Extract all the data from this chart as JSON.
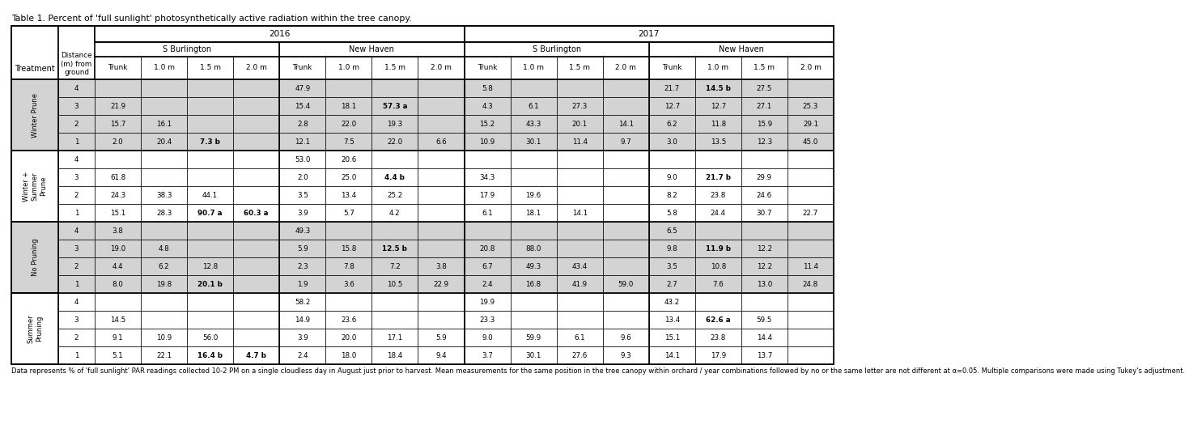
{
  "title": "Table 1. Percent of 'full sunlight' photosynthetically active radiation within the tree canopy.",
  "footnote": "Data represents % of 'full sunlight' PAR readings collected 10-2 PM on a single cloudless day in August just prior to harvest. Mean measurements for the same position in the tree canopy within orchard / year combinations followed by no or the same letter are not different at α=0.05. Multiple comparisons were made using Tukey's adjustment.",
  "col_headers": [
    "Trunk",
    "1.0 m",
    "1.5 m",
    "2.0 m",
    "Trunk",
    "1.0 m",
    "1.5 m",
    "2.0 m",
    "Trunk",
    "1.0 m",
    "1.5 m",
    "2.0 m",
    "Trunk",
    "1.0 m",
    "1.5 m",
    "2.0 m"
  ],
  "treatments": [
    {
      "name": "Winter Prune",
      "rows": [
        {
          "dist": "4",
          "vals": [
            "",
            "",
            "",
            "",
            "47.9",
            "",
            "",
            "",
            "5.8",
            "",
            "",
            "",
            "21.7",
            "14.5 b",
            "27.5",
            ""
          ]
        },
        {
          "dist": "3",
          "vals": [
            "21.9",
            "",
            "",
            "",
            "15.4",
            "18.1",
            "57.3 a",
            "",
            "4.3",
            "6.1",
            "27.3",
            "",
            "12.7",
            "12.7",
            "27.1",
            "25.3"
          ]
        },
        {
          "dist": "2",
          "vals": [
            "15.7",
            "16.1",
            "",
            "",
            "2.8",
            "22.0",
            "19.3",
            "",
            "15.2",
            "43.3",
            "20.1",
            "14.1",
            "6.2",
            "11.8",
            "15.9",
            "29.1"
          ]
        },
        {
          "dist": "1",
          "vals": [
            "2.0",
            "20.4",
            "7.3 b",
            "",
            "12.1",
            "7.5",
            "22.0",
            "6.6",
            "10.9",
            "30.1",
            "11.4",
            "9.7",
            "3.0",
            "13.5",
            "12.3",
            "45.0"
          ]
        }
      ],
      "shade": true
    },
    {
      "name": "Winter +\nSummer\nPrune",
      "rows": [
        {
          "dist": "4",
          "vals": [
            "",
            "",
            "",
            "",
            "53.0",
            "20.6",
            "",
            "",
            "",
            "",
            "",
            "",
            "",
            "",
            "",
            ""
          ]
        },
        {
          "dist": "3",
          "vals": [
            "61.8",
            "",
            "",
            "",
            "2.0",
            "25.0",
            "4.4 b",
            "",
            "34.3",
            "",
            "",
            "",
            "9.0",
            "21.7 b",
            "29.9",
            ""
          ]
        },
        {
          "dist": "2",
          "vals": [
            "24.3",
            "38.3",
            "44.1",
            "",
            "3.5",
            "13.4",
            "25.2",
            "",
            "17.9",
            "19.6",
            "",
            "",
            "8.2",
            "23.8",
            "24.6",
            ""
          ]
        },
        {
          "dist": "1",
          "vals": [
            "15.1",
            "28.3",
            "90.7 a",
            "60.3 a",
            "3.9",
            "5.7",
            "4.2",
            "",
            "6.1",
            "18.1",
            "14.1",
            "",
            "5.8",
            "24.4",
            "30.7",
            "22.7"
          ]
        }
      ],
      "shade": false
    },
    {
      "name": "No Pruning",
      "rows": [
        {
          "dist": "4",
          "vals": [
            "3.8",
            "",
            "",
            "",
            "49.3",
            "",
            "",
            "",
            "",
            "",
            "",
            "",
            "6.5",
            "",
            "",
            ""
          ]
        },
        {
          "dist": "3",
          "vals": [
            "19.0",
            "4.8",
            "",
            "",
            "5.9",
            "15.8",
            "12.5 b",
            "",
            "20.8",
            "88.0",
            "",
            "",
            "9.8",
            "11.9 b",
            "12.2",
            ""
          ]
        },
        {
          "dist": "2",
          "vals": [
            "4.4",
            "6.2",
            "12.8",
            "",
            "2.3",
            "7.8",
            "7.2",
            "3.8",
            "6.7",
            "49.3",
            "43.4",
            "",
            "3.5",
            "10.8",
            "12.2",
            "11.4"
          ]
        },
        {
          "dist": "1",
          "vals": [
            "8.0",
            "19.8",
            "20.1 b",
            "",
            "1.9",
            "3.6",
            "10.5",
            "22.9",
            "2.4",
            "16.8",
            "41.9",
            "59.0",
            "2.7",
            "7.6",
            "13.0",
            "24.8"
          ]
        }
      ],
      "shade": true
    },
    {
      "name": "Summer\nPruning",
      "rows": [
        {
          "dist": "4",
          "vals": [
            "",
            "",
            "",
            "",
            "58.2",
            "",
            "",
            "",
            "19.9",
            "",
            "",
            "",
            "43.2",
            "",
            "",
            ""
          ]
        },
        {
          "dist": "3",
          "vals": [
            "14.5",
            "",
            "",
            "",
            "14.9",
            "23.6",
            "",
            "",
            "23.3",
            "",
            "",
            "",
            "13.4",
            "62.6 a",
            "59.5",
            ""
          ]
        },
        {
          "dist": "2",
          "vals": [
            "9.1",
            "10.9",
            "56.0",
            "",
            "3.9",
            "20.0",
            "17.1",
            "5.9",
            "9.0",
            "59.9",
            "6.1",
            "9.6",
            "15.1",
            "23.8",
            "14.4",
            ""
          ]
        },
        {
          "dist": "1",
          "vals": [
            "5.1",
            "22.1",
            "16.4 b",
            "4.7 b",
            "2.4",
            "18.0",
            "18.4",
            "9.4",
            "3.7",
            "30.1",
            "27.6",
            "9.3",
            "14.1",
            "17.9",
            "13.7",
            ""
          ]
        }
      ],
      "shade": false
    }
  ],
  "bold_values": [
    "57.3 a",
    "7.3 b",
    "14.5 b",
    "4.4 b",
    "90.7 a",
    "60.3 a",
    "21.7 b",
    "12.5 b",
    "20.1 b",
    "11.9 b",
    "62.6 a",
    "16.4 b",
    "4.7 b"
  ],
  "bg_shade": "#d3d3d3",
  "bg_white": "#ffffff",
  "lw_thin": 0.5,
  "lw_thick": 1.2,
  "data_fontsize": 6.3,
  "header_fontsize": 7.0,
  "title_fontsize": 7.8,
  "footnote_fontsize": 6.0
}
